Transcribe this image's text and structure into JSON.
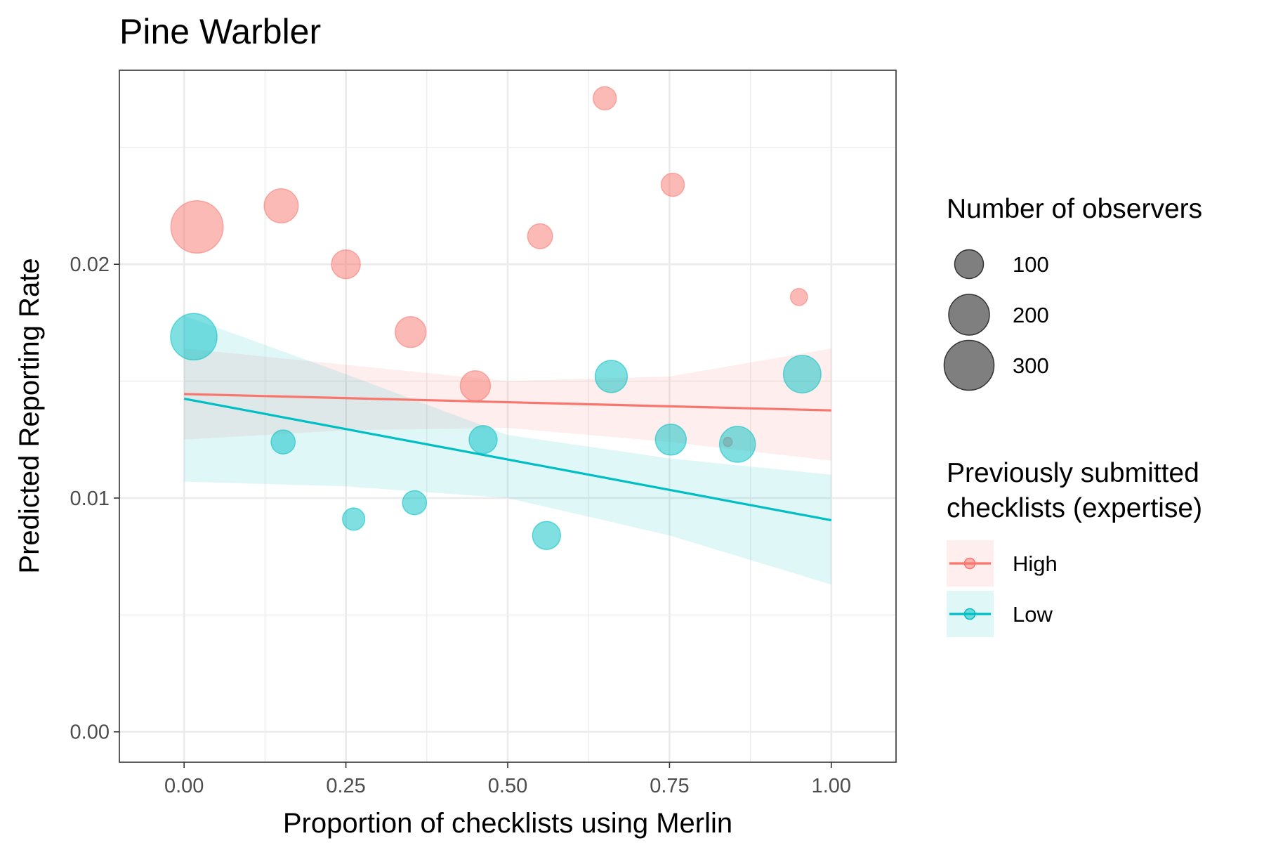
{
  "chart_data": {
    "type": "scatter",
    "title": "Pine Warbler",
    "xlabel": "Proportion of checklists using Merlin",
    "ylabel": "Predicted Reporting Rate",
    "xlim": [
      -0.1,
      1.1
    ],
    "ylim": [
      -0.0013,
      0.0283
    ],
    "x_ticks": [
      0.0,
      0.25,
      0.5,
      0.75,
      1.0
    ],
    "x_tick_labels": [
      "0.00",
      "0.25",
      "0.50",
      "0.75",
      "1.00"
    ],
    "y_ticks": [
      0.0,
      0.01,
      0.02
    ],
    "y_tick_labels": [
      "0.00",
      "0.01",
      "0.02"
    ],
    "grid": true,
    "legend_position": "right",
    "size_legend": {
      "title": "Number of observers",
      "values": [
        100,
        200,
        300
      ],
      "labels": [
        "100",
        "200",
        "300"
      ]
    },
    "color_legend": {
      "title_lines": [
        "Previously submitted",
        "checklists (expertise)"
      ]
    },
    "series": [
      {
        "name": "High",
        "color": "#F8766D",
        "points": [
          {
            "x": 0.02,
            "y": 0.0216,
            "n": 330
          },
          {
            "x": 0.15,
            "y": 0.0225,
            "n": 140
          },
          {
            "x": 0.25,
            "y": 0.02,
            "n": 100
          },
          {
            "x": 0.35,
            "y": 0.0171,
            "n": 115
          },
          {
            "x": 0.45,
            "y": 0.0148,
            "n": 110
          },
          {
            "x": 0.55,
            "y": 0.0212,
            "n": 75
          },
          {
            "x": 0.65,
            "y": 0.0271,
            "n": 65
          },
          {
            "x": 0.755,
            "y": 0.0234,
            "n": 65
          },
          {
            "x": 0.84,
            "y": 0.0124,
            "n": 10
          },
          {
            "x": 0.95,
            "y": 0.0186,
            "n": 35
          }
        ],
        "fit": {
          "x": [
            0.0,
            1.0
          ],
          "y": [
            0.01445,
            0.01375
          ]
        },
        "ci": {
          "x": [
            0.0,
            0.25,
            0.5,
            0.75,
            1.0
          ],
          "lower": [
            0.0125,
            0.0129,
            0.013,
            0.0124,
            0.0116
          ],
          "upper": [
            0.0164,
            0.0157,
            0.015,
            0.0152,
            0.0164
          ]
        }
      },
      {
        "name": "Low",
        "color": "#00BFC4",
        "points": [
          {
            "x": 0.015,
            "y": 0.0169,
            "n": 260
          },
          {
            "x": 0.153,
            "y": 0.0124,
            "n": 70
          },
          {
            "x": 0.262,
            "y": 0.0091,
            "n": 60
          },
          {
            "x": 0.356,
            "y": 0.0098,
            "n": 70
          },
          {
            "x": 0.462,
            "y": 0.0125,
            "n": 95
          },
          {
            "x": 0.56,
            "y": 0.0084,
            "n": 95
          },
          {
            "x": 0.66,
            "y": 0.0152,
            "n": 125
          },
          {
            "x": 0.752,
            "y": 0.0125,
            "n": 115
          },
          {
            "x": 0.855,
            "y": 0.0123,
            "n": 155
          },
          {
            "x": 0.955,
            "y": 0.0153,
            "n": 170
          }
        ],
        "fit": {
          "x": [
            0.0,
            1.0
          ],
          "y": [
            0.01425,
            0.00905
          ]
        },
        "ci": {
          "x": [
            0.0,
            0.25,
            0.5,
            0.75,
            1.0
          ],
          "lower": [
            0.0107,
            0.0105,
            0.01,
            0.0084,
            0.0063
          ],
          "upper": [
            0.0178,
            0.0153,
            0.0127,
            0.0117,
            0.011
          ]
        }
      }
    ]
  }
}
